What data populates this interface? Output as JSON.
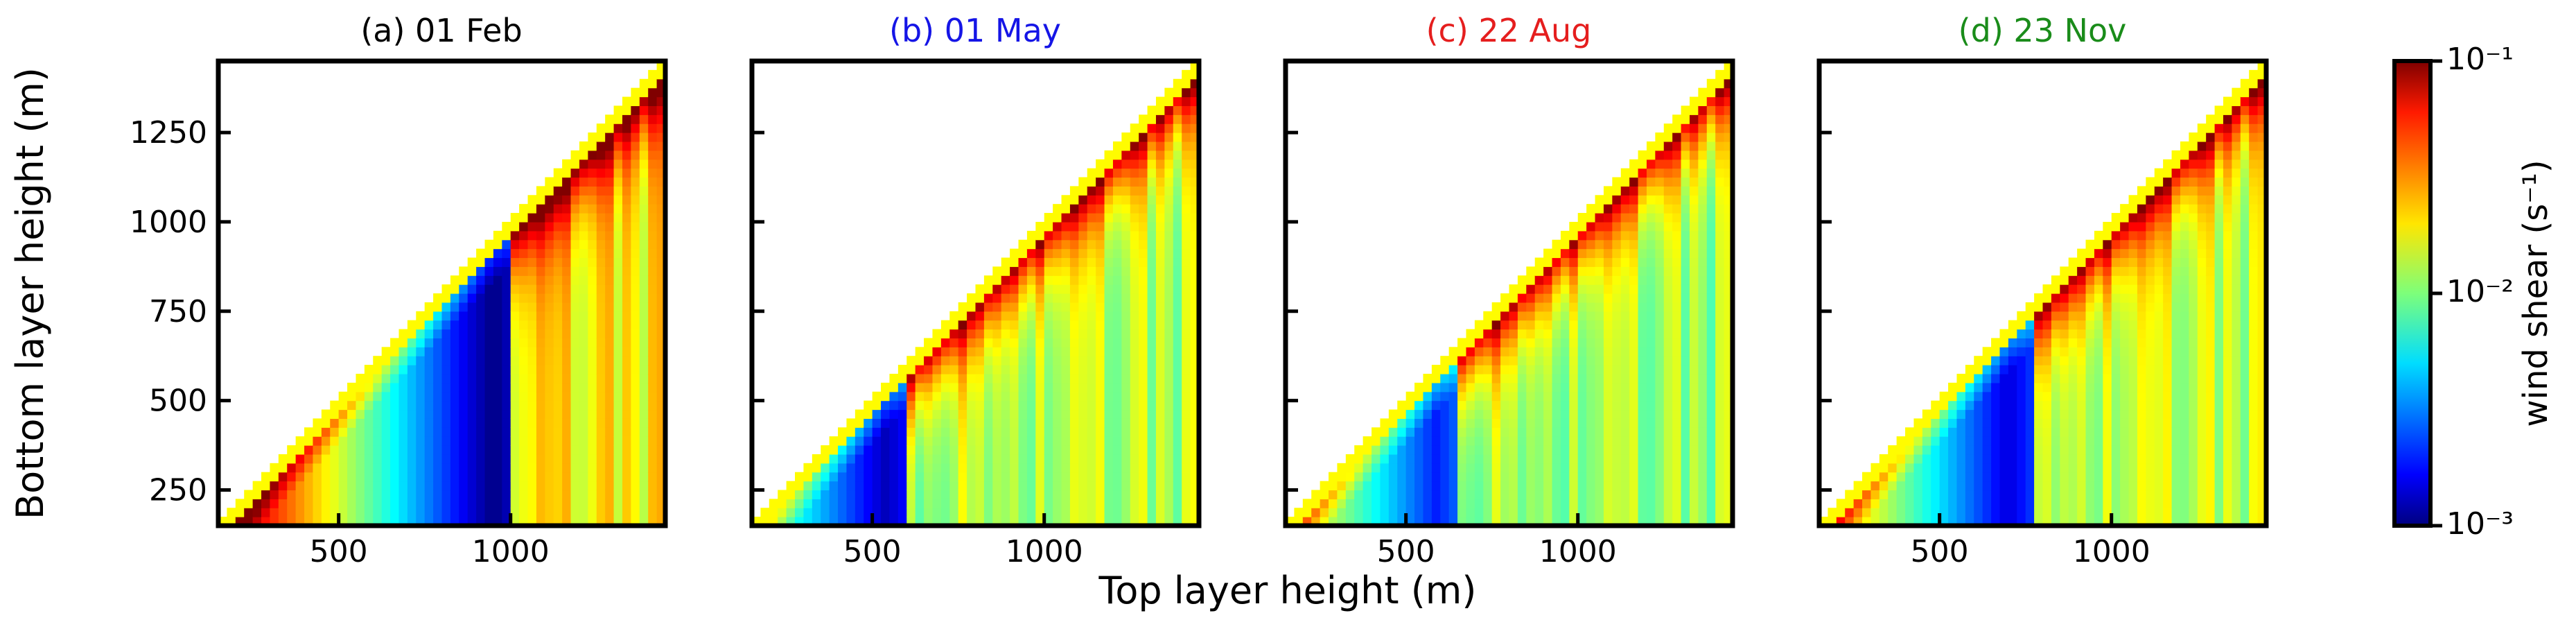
{
  "chart_data": {
    "type": "heatmap",
    "xlabel": "Top layer height (m)",
    "ylabel": "Bottom layer height (m)",
    "xlim": [
      150,
      1450
    ],
    "ylim": [
      150,
      1450
    ],
    "x_ticks": [
      500,
      1000
    ],
    "y_ticks": [
      250,
      500,
      750,
      1000,
      1250
    ],
    "cell_size_m": 25,
    "panels": [
      {
        "title": "(a) 01 Feb",
        "title_color": "#000000",
        "break_height": 1000,
        "min_center": 950,
        "min_value": 0.001,
        "upper_base": 0.018
      },
      {
        "title": "(b) 01 May",
        "title_color": "#1515e6",
        "break_height": 600,
        "min_center": 540,
        "min_value": 0.0013,
        "upper_base": 0.012
      },
      {
        "title": "(c) 22 Aug",
        "title_color": "#e51e1e",
        "break_height": 640,
        "min_center": 590,
        "min_value": 0.002,
        "upper_base": 0.011
      },
      {
        "title": "(d) 23 Nov",
        "title_color": "#1a8c1a",
        "break_height": 780,
        "min_center": 700,
        "min_value": 0.0015,
        "upper_base": 0.013
      }
    ],
    "colorbar": {
      "label": "wind shear (s⁻¹)",
      "scale": "log",
      "colormap": "jet",
      "min": 0.001,
      "max": 0.1,
      "tick_labels": [
        "10⁻¹",
        "10⁻²",
        "10⁻³"
      ]
    }
  }
}
